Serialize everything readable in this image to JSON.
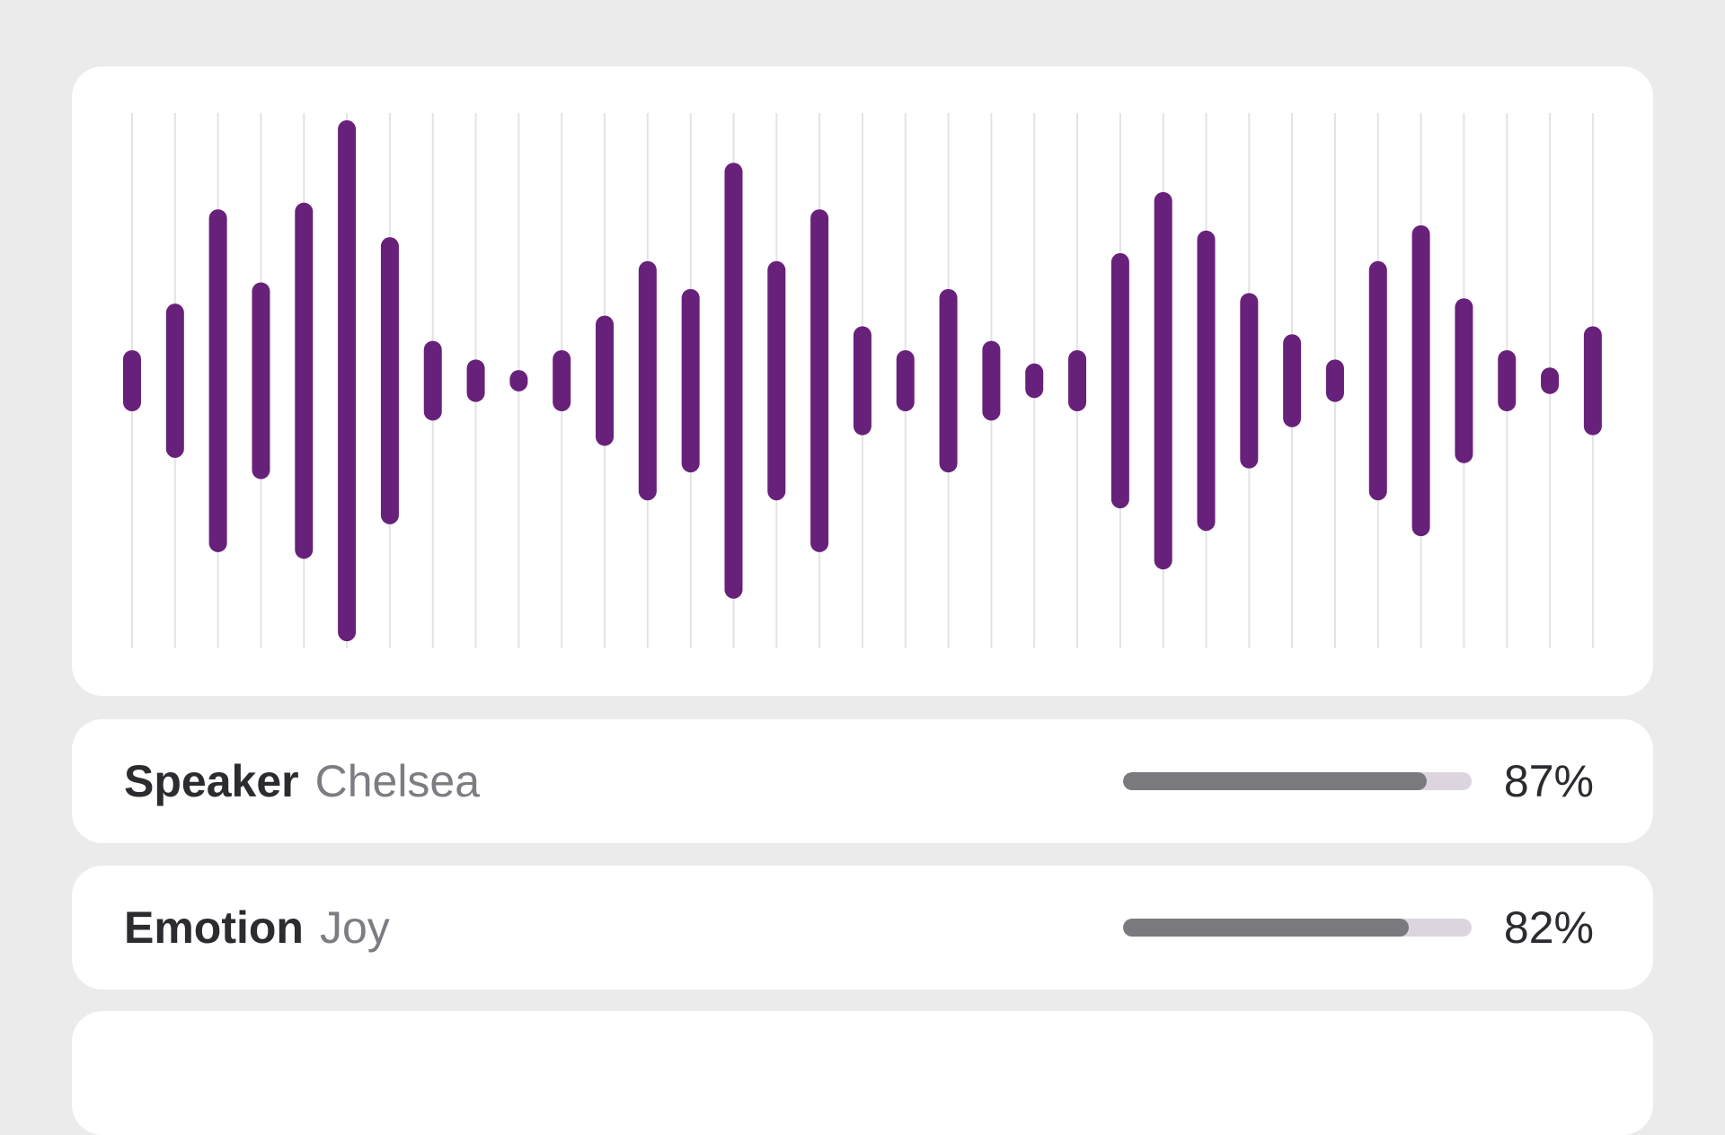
{
  "colors": {
    "page_background": "#ebebeb",
    "card_background": "#ffffff",
    "waveform_bar": "#68217a",
    "grid_line": "#e3e3e3",
    "progress_fill": "#7a7a7e",
    "progress_track": "#dcd5e0",
    "label_text": "#2b2b30",
    "value_text": "#7c7c82"
  },
  "waveform": {
    "bar_count": 35,
    "amplitudes": [
      0.115,
      0.29,
      0.645,
      0.37,
      0.67,
      0.98,
      0.54,
      0.15,
      0.08,
      0.04,
      0.115,
      0.245,
      0.45,
      0.345,
      0.82,
      0.45,
      0.645,
      0.205,
      0.115,
      0.345,
      0.15,
      0.065,
      0.115,
      0.48,
      0.71,
      0.565,
      0.33,
      0.175,
      0.08,
      0.45,
      0.585,
      0.31,
      0.115,
      0.05,
      0.205
    ]
  },
  "metrics": [
    {
      "label": "Speaker",
      "value": "Chelsea",
      "percent_text": "87%",
      "fraction": 0.87,
      "icon": "speaker-confidence"
    },
    {
      "label": "Emotion",
      "value": "Joy",
      "percent_text": "82%",
      "fraction": 0.82,
      "icon": "emotion-confidence"
    }
  ]
}
